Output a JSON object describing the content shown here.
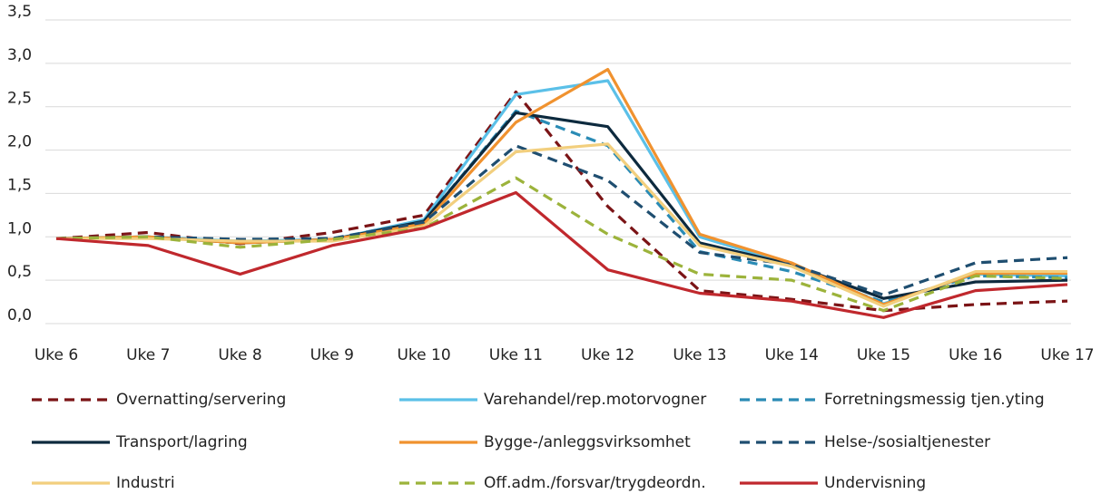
{
  "chart_data": {
    "type": "line",
    "categories": [
      "Uke 6",
      "Uke 7",
      "Uke 8",
      "Uke 9",
      "Uke 10",
      "Uke 11",
      "Uke 12",
      "Uke 13",
      "Uke 14",
      "Uke 15",
      "Uke 16",
      "Uke 17"
    ],
    "ylim": [
      0,
      3.5
    ],
    "yticks": [
      {
        "value": 0,
        "label": "0,0"
      },
      {
        "value": 0.5,
        "label": "0,5"
      },
      {
        "value": 1,
        "label": "1,0"
      },
      {
        "value": 1.5,
        "label": "1,5"
      },
      {
        "value": 2,
        "label": "2,0"
      },
      {
        "value": 2.5,
        "label": "2,5"
      },
      {
        "value": 3,
        "label": "3,0"
      },
      {
        "value": 3.5,
        "label": "3,5"
      }
    ],
    "grid": true,
    "legend": "bottom",
    "series": [
      {
        "name": "Overnatting/servering",
        "color": "#7b1416",
        "dashed": true,
        "values": [
          0.98,
          1.05,
          0.92,
          1.05,
          1.25,
          2.67,
          1.35,
          0.38,
          0.28,
          0.15,
          0.22,
          0.26
        ]
      },
      {
        "name": "Varehandel/rep.motorvogner",
        "color": "#5bc0e8",
        "dashed": false,
        "values": [
          0.98,
          1.0,
          0.95,
          0.97,
          1.2,
          2.64,
          2.8,
          1.0,
          0.68,
          0.23,
          0.57,
          0.55
        ]
      },
      {
        "name": "Forretningsmessig tjen.yting",
        "color": "#2a8bb5",
        "dashed": true,
        "values": [
          0.98,
          1.0,
          0.97,
          0.98,
          1.18,
          2.45,
          2.05,
          0.83,
          0.6,
          0.25,
          0.55,
          0.53
        ]
      },
      {
        "name": "Transport/lagring",
        "color": "#0d2a3e",
        "dashed": false,
        "values": [
          0.98,
          1.0,
          0.93,
          0.97,
          1.18,
          2.43,
          2.27,
          0.93,
          0.68,
          0.29,
          0.48,
          0.5
        ]
      },
      {
        "name": "Bygge-/anleggsvirksomhet",
        "color": "#f0922f",
        "dashed": false,
        "values": [
          0.98,
          1.0,
          0.93,
          0.97,
          1.15,
          2.32,
          2.93,
          1.03,
          0.7,
          0.22,
          0.58,
          0.58
        ]
      },
      {
        "name": "Helse-/sosialtjenester",
        "color": "#1f4e70",
        "dashed": true,
        "values": [
          0.98,
          1.0,
          0.97,
          0.98,
          1.17,
          2.05,
          1.65,
          0.82,
          0.68,
          0.33,
          0.7,
          0.76
        ]
      },
      {
        "name": "Industri",
        "color": "#f2cf7e",
        "dashed": false,
        "values": [
          0.98,
          0.98,
          0.95,
          0.95,
          1.12,
          1.98,
          2.07,
          0.9,
          0.66,
          0.2,
          0.6,
          0.6
        ]
      },
      {
        "name": "Off.adm./forsvar/trygdeordn.",
        "color": "#9cb33b",
        "dashed": true,
        "values": [
          0.98,
          1.0,
          0.88,
          0.97,
          1.1,
          1.68,
          1.03,
          0.57,
          0.5,
          0.15,
          0.55,
          0.52
        ]
      },
      {
        "name": "Undervisning",
        "color": "#c0282d",
        "dashed": false,
        "values": [
          0.98,
          0.9,
          0.57,
          0.9,
          1.1,
          1.51,
          0.62,
          0.35,
          0.26,
          0.07,
          0.38,
          0.45
        ]
      }
    ]
  }
}
